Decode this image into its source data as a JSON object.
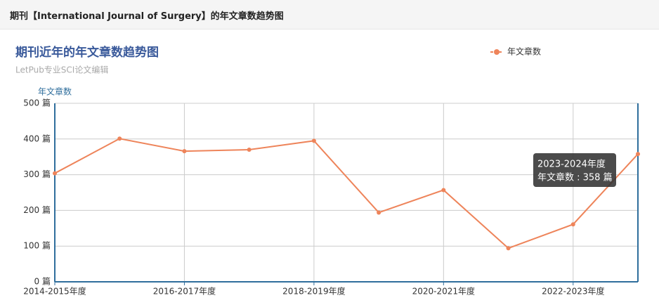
{
  "header": {
    "title": "期刊【International Journal of Surgery】的年文章数趋势图"
  },
  "chart_data": {
    "type": "line",
    "title": "期刊近年的年文章数趋势图",
    "subtitle": "LetPub专业SCI论文编辑",
    "y_axis_label": "年文章数",
    "categories": [
      "2014-2015年度",
      null,
      "2016-2017年度",
      null,
      "2018-2019年度",
      null,
      "2020-2021年度",
      null,
      "2022-2023年度",
      null
    ],
    "series": [
      {
        "name": "年文章数",
        "color": "#ee845a",
        "values": [
          304,
          401,
          366,
          370,
          395,
          194,
          257,
          94,
          161,
          358
        ]
      }
    ],
    "ylim": [
      0,
      500
    ],
    "yticks": [
      {
        "value": 0,
        "label": "0 篇"
      },
      {
        "value": 100,
        "label": "100 篇"
      },
      {
        "value": 200,
        "label": "200 篇"
      },
      {
        "value": 300,
        "label": "300 篇"
      },
      {
        "value": 400,
        "label": "400 篇"
      },
      {
        "value": 500,
        "label": "500 篇"
      }
    ],
    "grid": true,
    "legend": "top-right",
    "tooltip": {
      "title": "2023-2024年度",
      "label": "年文章数 : 358 篇"
    }
  }
}
